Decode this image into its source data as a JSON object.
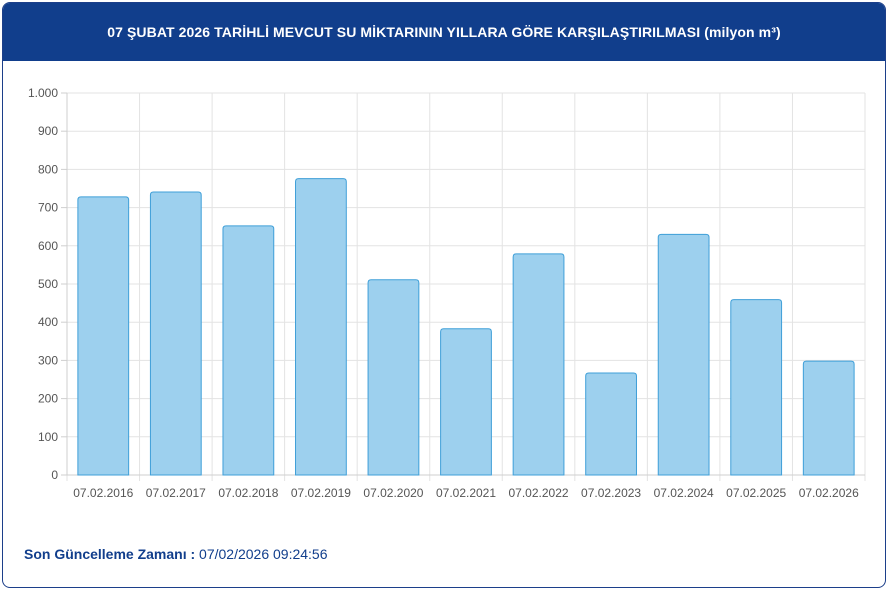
{
  "header": {
    "title": "07 ŞUBAT 2026 TARİHLİ MEVCUT SU MİKTARININ YILLARA GÖRE KARŞILAŞTIRILMASI (milyon m³)"
  },
  "footer": {
    "label": "Son Güncelleme Zamanı :",
    "value": "07/02/2026 09:24:56"
  },
  "colors": {
    "bar_fill": "#9dd0ee",
    "bar_stroke": "#3f9fd8",
    "header_bg": "#113e8c",
    "grid": "#e3e3e3"
  },
  "chart_data": {
    "type": "bar",
    "categories": [
      "07.02.2016",
      "07.02.2017",
      "07.02.2018",
      "07.02.2019",
      "07.02.2020",
      "07.02.2021",
      "07.02.2022",
      "07.02.2023",
      "07.02.2024",
      "07.02.2025",
      "07.02.2026"
    ],
    "values": [
      728,
      741,
      652,
      776,
      511,
      383,
      579,
      267,
      630,
      459,
      298
    ],
    "ylim": [
      0,
      1000
    ],
    "yticks": [
      0,
      100,
      200,
      300,
      400,
      500,
      600,
      700,
      800,
      900,
      1000
    ],
    "ytick_labels": [
      "0",
      "100",
      "200",
      "300",
      "400",
      "500",
      "600",
      "700",
      "800",
      "900",
      "1.000"
    ],
    "grid": true
  }
}
